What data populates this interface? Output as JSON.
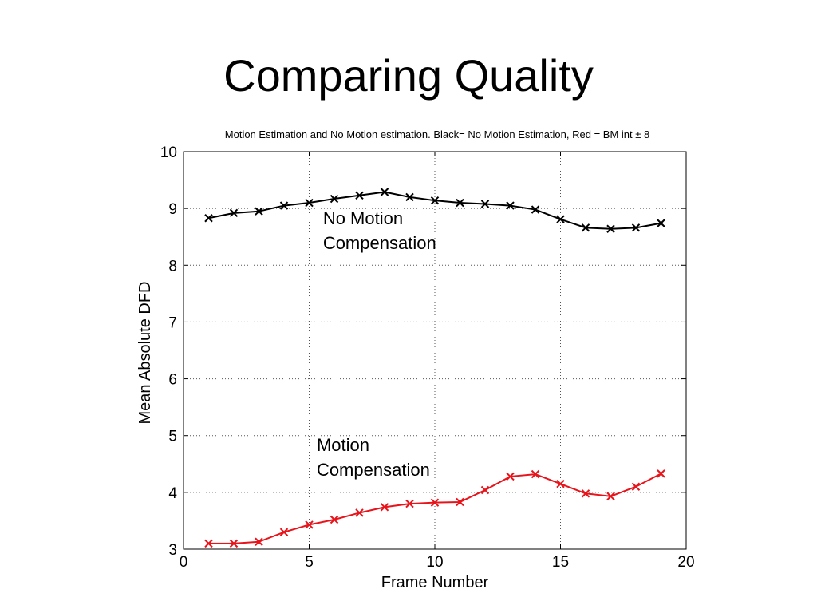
{
  "slide": {
    "title": "Comparing Quality"
  },
  "colors": {
    "series_black": "#000000",
    "series_red": "#e8141b",
    "grid": "#555555"
  },
  "chart_data": {
    "type": "line",
    "title": "Motion Estimation and No Motion estimation. Black= No Motion Estimation, Red = BM int ± 8",
    "xlabel": "Frame Number",
    "ylabel": "Mean Absolute DFD",
    "xlim": [
      0,
      20
    ],
    "ylim": [
      3,
      10
    ],
    "xticks": [
      0,
      5,
      10,
      15,
      20
    ],
    "yticks": [
      3,
      4,
      5,
      6,
      7,
      8,
      9,
      10
    ],
    "grid": true,
    "marker": "x",
    "x": [
      1,
      2,
      3,
      4,
      5,
      6,
      7,
      8,
      9,
      10,
      11,
      12,
      13,
      14,
      15,
      16,
      17,
      18,
      19
    ],
    "series": [
      {
        "color": "#000000",
        "values": [
          8.83,
          8.92,
          8.95,
          9.05,
          9.1,
          9.17,
          9.23,
          9.29,
          9.2,
          9.14,
          9.1,
          9.08,
          9.05,
          8.98,
          8.81,
          8.66,
          8.64,
          8.66,
          8.74
        ]
      },
      {
        "color": "#e8141b",
        "values": [
          3.1,
          3.1,
          3.13,
          3.3,
          3.43,
          3.52,
          3.64,
          3.74,
          3.8,
          3.82,
          3.83,
          4.04,
          4.28,
          4.32,
          4.15,
          3.98,
          3.93,
          4.1,
          4.33
        ]
      }
    ],
    "annotations": [
      {
        "lines": [
          "No Motion",
          "Compensation"
        ],
        "x": 5.55,
        "y": 8.72
      },
      {
        "lines": [
          "Motion",
          "Compensation"
        ],
        "x": 5.3,
        "y": 4.73
      }
    ]
  }
}
